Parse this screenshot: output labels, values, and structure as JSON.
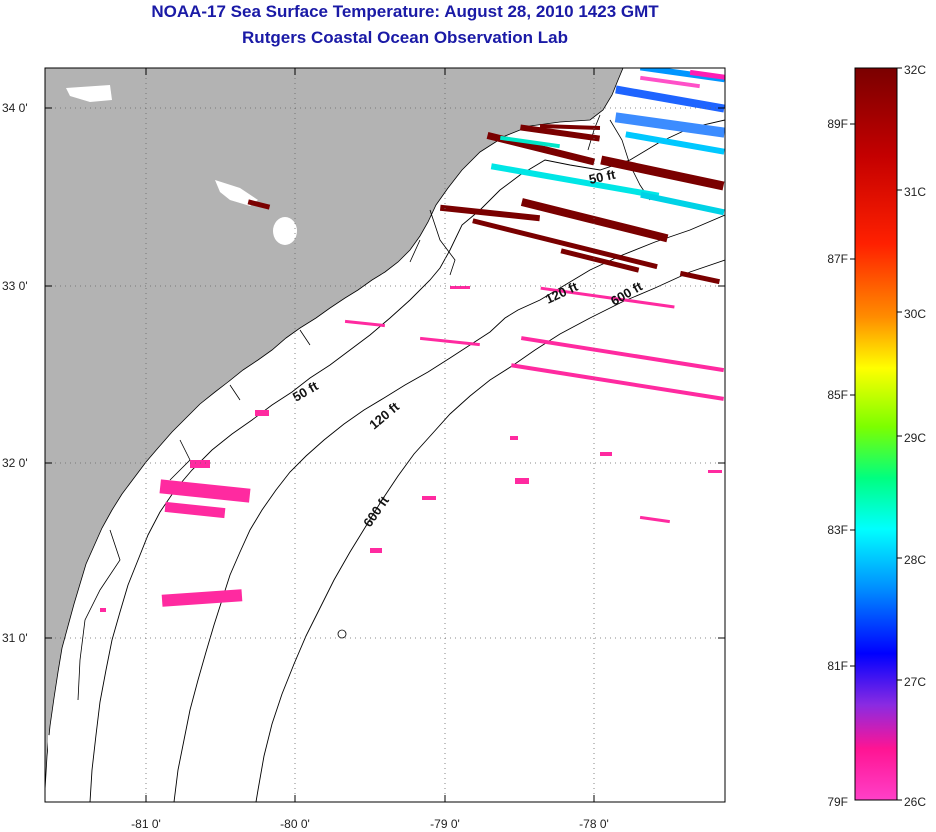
{
  "title": "NOAA-17 Sea Surface Temperature:  August 28, 2010 1423 GMT",
  "subtitle": "Rutgers Coastal Ocean Observation Lab",
  "map": {
    "lat_ticks": [
      "34 0'",
      "33 0'",
      "32 0'",
      "31 0'"
    ],
    "lon_ticks": [
      "-81 0'",
      "-80 0'",
      "-79 0'",
      "-78 0'"
    ],
    "bathymetry_labels": [
      "50 ft",
      "120 ft",
      "600 ft",
      "50 ft",
      "120 ft",
      "600 ft"
    ],
    "colors": {
      "land": "#b3b3b3",
      "ocean_no_data": "#ffffff",
      "coastline": "#000000"
    }
  },
  "colorbar": {
    "celsius_labels": [
      "32C",
      "31C",
      "30C",
      "29C",
      "28C",
      "27C",
      "26C"
    ],
    "fahrenheit_labels": [
      "89F",
      "87F",
      "85F",
      "83F",
      "81F",
      "79F"
    ],
    "gradient_colors": [
      "#7a0000",
      "#c80000",
      "#ff2a00",
      "#ff8c00",
      "#ffff00",
      "#9aff00",
      "#00ff64",
      "#00ffff",
      "#0096ff",
      "#0000ff",
      "#8a2be2",
      "#ff1493",
      "#ff3cc8"
    ]
  }
}
